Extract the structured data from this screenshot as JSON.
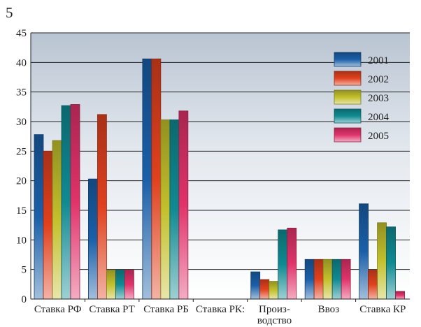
{
  "page_number": "5",
  "chart_data": {
    "type": "bar",
    "title": "",
    "xlabel": "",
    "ylabel": "",
    "ylim": [
      0,
      45
    ],
    "yticks": [
      0,
      5,
      10,
      15,
      20,
      25,
      30,
      35,
      40,
      45
    ],
    "grid": true,
    "legend_position": "top-right",
    "categories": [
      [
        "Ставка РФ"
      ],
      [
        "Ставка РТ"
      ],
      [
        "Ставка РБ"
      ],
      [
        "Ставка РК:"
      ],
      [
        "Произ-",
        "водство"
      ],
      [
        "Ввоз"
      ],
      [
        "Ставка КР"
      ]
    ],
    "series": [
      {
        "name": "2001",
        "color": "#1a5fa8",
        "values": [
          27.8,
          20.3,
          40.6,
          0,
          4.6,
          6.7,
          16.1
        ]
      },
      {
        "name": "2002",
        "color": "#e0411e",
        "values": [
          25.0,
          31.2,
          40.6,
          0,
          3.3,
          6.7,
          4.9
        ]
      },
      {
        "name": "2003",
        "color": "#c2c02c",
        "values": [
          26.8,
          4.9,
          30.3,
          0,
          3.0,
          6.7,
          12.9
        ]
      },
      {
        "name": "2004",
        "color": "#108a92",
        "values": [
          32.7,
          4.9,
          30.3,
          0,
          11.7,
          6.7,
          12.2
        ]
      },
      {
        "name": "2005",
        "color": "#e0336a",
        "values": [
          32.9,
          4.9,
          31.8,
          0,
          12.0,
          6.7,
          1.3
        ]
      }
    ]
  }
}
